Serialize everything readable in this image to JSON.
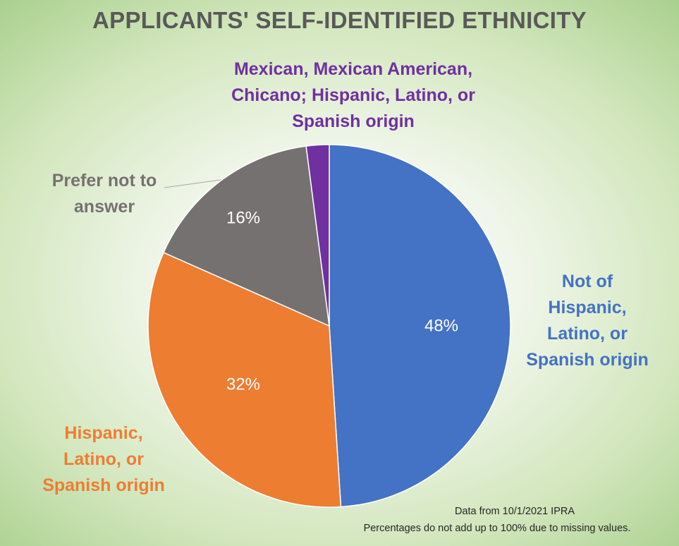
{
  "chart_data": {
    "type": "pie",
    "title": "APPLICANTS' SELF-IDENTIFIED ETHNICITY",
    "categories": [
      "Not of Hispanic, Latino, or Spanish origin",
      "Hispanic, Latino, or Spanish origin",
      "Prefer not to answer",
      "Mexican, Mexican American, Chicano; Hispanic, Latino, or Spanish origin"
    ],
    "values": [
      48,
      32,
      16,
      2
    ],
    "data_labels": [
      "48%",
      "32%",
      "16%",
      ""
    ],
    "colors": [
      "#4472C4",
      "#ED7D31",
      "#767171",
      "#7030A0"
    ],
    "legend": "none",
    "notes": [
      "Data from 10/1/2021 IPRA",
      "Percentages do not add up to 100% due to missing values."
    ]
  }
}
